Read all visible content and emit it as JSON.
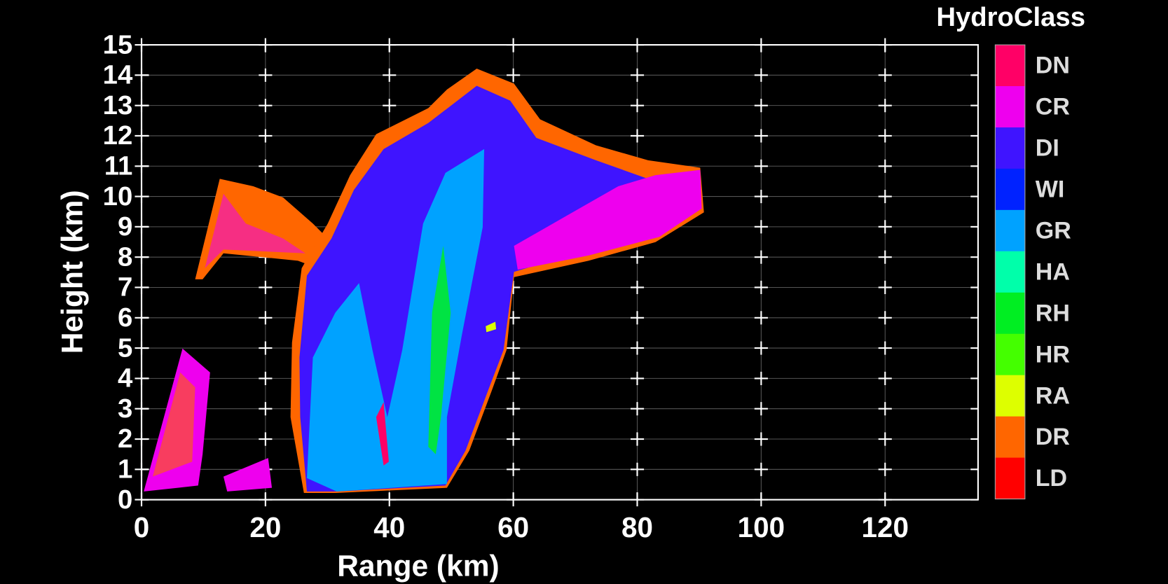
{
  "chart_data": {
    "type": "rhi",
    "x_label": "Range (km)",
    "y_label": "Height (km)",
    "xlim": [
      0,
      135
    ],
    "ylim": [
      0,
      15
    ],
    "xticks": [
      0,
      20,
      40,
      60,
      80,
      100,
      120
    ],
    "yticks": [
      0,
      1,
      2,
      3,
      4,
      5,
      6,
      7,
      8,
      9,
      10,
      11,
      12,
      13,
      14,
      15
    ],
    "grid": true,
    "colorbar": {
      "title": "HydroClass",
      "classes": [
        "DN",
        "CR",
        "DI",
        "WI",
        "GR",
        "HA",
        "RH",
        "HR",
        "RA",
        "DR",
        "LD"
      ],
      "colors": [
        "#ff0066",
        "#ee00ee",
        "#3f14ff",
        "#0022ff",
        "#00a2ff",
        "#00ffaa",
        "#00ee22",
        "#44ff00",
        "#ddff00",
        "#ff6600",
        "#ff0000"
      ]
    }
  }
}
